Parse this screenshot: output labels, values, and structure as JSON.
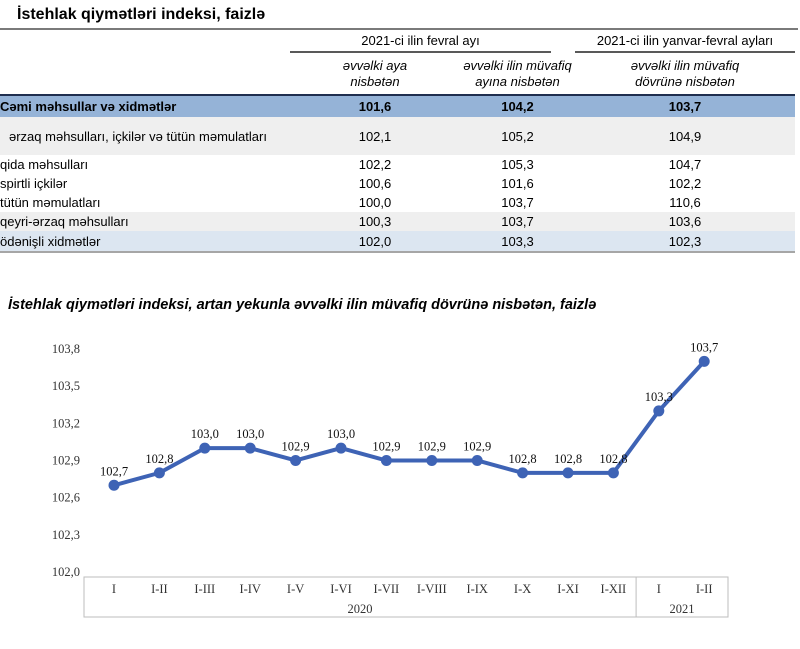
{
  "document": {
    "table_title": "İstehlak qiymətləri indeksi, faizlə"
  },
  "table": {
    "col_groups": [
      {
        "label": "2021-ci ilin fevral ayı"
      },
      {
        "label": "2021-ci ilin yanvar-fevral ayları"
      }
    ],
    "sub_headers": [
      {
        "line1": "əvvəlki aya",
        "line2": "nisbətən"
      },
      {
        "line1": "əvvəlki ilin müvafiq",
        "line2": "ayına nisbətən"
      },
      {
        "line1": "əvvəlki ilin müvafiq",
        "line2": "dövrünə nisbətən"
      }
    ],
    "rows": [
      {
        "label": "Cəmi məhsullar və xidmətlər",
        "values": [
          "101,6",
          "104,2",
          "103,7"
        ]
      },
      {
        "label": "ərzaq məhsulları, içkilər və tütün məmulatları",
        "values": [
          "102,1",
          "105,2",
          "104,9"
        ]
      },
      {
        "label": "qida məhsulları",
        "values": [
          "102,2",
          "105,3",
          "104,7"
        ]
      },
      {
        "label": "spirtli içkilər",
        "values": [
          "100,6",
          "101,6",
          "102,2"
        ]
      },
      {
        "label": "tütün məmulatları",
        "values": [
          "100,0",
          "103,7",
          "110,6"
        ]
      },
      {
        "label": "qeyri-ərzaq məhsulları",
        "values": [
          "100,3",
          "103,7",
          "103,6"
        ]
      },
      {
        "label": "ödənişli xidmətlər",
        "values": [
          "102,0",
          "103,3",
          "102,3"
        ]
      }
    ]
  },
  "chart_data": {
    "type": "line",
    "title": "İstehlak qiymətləri indeksi, artan yekunla əvvəlki ilin müvafiq dövrünə nisbətən, faizlə",
    "categories": [
      "I",
      "I-II",
      "I-III",
      "I-IV",
      "I-V",
      "I-VI",
      "I-VII",
      "I-VIII",
      "I-IX",
      "I-X",
      "I-XI",
      "I-XII",
      "I",
      "I-II"
    ],
    "values": [
      102.7,
      102.8,
      103.0,
      103.0,
      102.9,
      103.0,
      102.9,
      102.9,
      102.9,
      102.8,
      102.8,
      102.8,
      103.3,
      103.7
    ],
    "point_labels": [
      "102,7",
      "102,8",
      "103,0",
      "103,0",
      "102,9",
      "103,0",
      "102,9",
      "102,9",
      "102,9",
      "102,8",
      "102,8",
      "102,8",
      "103,3",
      "103,7"
    ],
    "year_groups": [
      {
        "label": "2020",
        "count": 12
      },
      {
        "label": "2021",
        "count": 2
      }
    ],
    "y_ticks": [
      "103,8",
      "103,5",
      "103,2",
      "102,9",
      "102,6",
      "102,3",
      "102,0"
    ],
    "ylim": [
      102.0,
      103.8
    ],
    "xlabel": "",
    "ylabel": "",
    "grid": false,
    "legend": "none",
    "line_color": "#3E63B5",
    "axis_box_color": "#BDBDBD"
  },
  "colors": {
    "total_row_bg": "#95B3D7",
    "services_row_bg": "#DCE6F1",
    "group_row_bg": "#EFEFEF",
    "line_blue": "#3E63B5"
  }
}
